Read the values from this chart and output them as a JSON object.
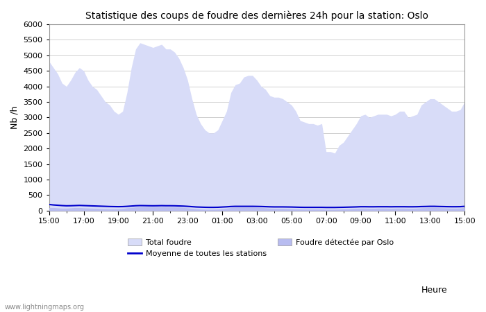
{
  "title": "Statistique des coups de foudre des dernières 24h pour la station: Oslo",
  "ylabel": "Nb /h",
  "xlabel": "Heure",
  "watermark": "www.lightningmaps.org",
  "x_ticks": [
    "15:00",
    "17:00",
    "19:00",
    "21:00",
    "23:00",
    "01:00",
    "03:00",
    "05:00",
    "07:00",
    "09:00",
    "11:00",
    "13:00",
    "15:00"
  ],
  "ylim": [
    0,
    6000
  ],
  "yticks": [
    0,
    500,
    1000,
    1500,
    2000,
    2500,
    3000,
    3500,
    4000,
    4500,
    5000,
    5500,
    6000
  ],
  "background_color": "#ffffff",
  "grid_color": "#c8c8c8",
  "fill_total_color": "#d8dcf8",
  "fill_oslo_color": "#b8bcf0",
  "line_mean_color": "#0000cc",
  "total_foudre": [
    4800,
    4600,
    4400,
    4100,
    4000,
    4200,
    4450,
    4600,
    4500,
    4200,
    4000,
    3900,
    3700,
    3500,
    3400,
    3200,
    3100,
    3200,
    3800,
    4600,
    5200,
    5400,
    5350,
    5300,
    5250,
    5300,
    5350,
    5200,
    5200,
    5100,
    4900,
    4600,
    4200,
    3600,
    3100,
    2800,
    2600,
    2500,
    2500,
    2600,
    2900,
    3200,
    3800,
    4050,
    4100,
    4300,
    4350,
    4350,
    4200,
    4000,
    3900,
    3700,
    3650,
    3650,
    3600,
    3500,
    3400,
    3200,
    2900,
    2850,
    2800,
    2800,
    2750,
    2800,
    1900,
    1900,
    1850,
    2100,
    2200,
    2400,
    2600,
    2800,
    3050,
    3100,
    3000,
    3050,
    3100,
    3100,
    3100,
    3050,
    3100,
    3200,
    3200,
    3000,
    3050,
    3100,
    3400,
    3500,
    3600,
    3600,
    3500,
    3400,
    3300,
    3200,
    3200,
    3250,
    3500
  ],
  "foudre_oslo": [
    100,
    100,
    90,
    80,
    80,
    90,
    100,
    100,
    90,
    85,
    80,
    75,
    70,
    65,
    60,
    60,
    60,
    70,
    90,
    100,
    120,
    130,
    130,
    130,
    125,
    130,
    130,
    125,
    125,
    120,
    115,
    100,
    90,
    75,
    60,
    50,
    45,
    45,
    45,
    50,
    65,
    80,
    100,
    110,
    110,
    110,
    110,
    110,
    105,
    100,
    90,
    80,
    75,
    75,
    75,
    70,
    65,
    60,
    55,
    50,
    50,
    50,
    50,
    50,
    45,
    45,
    45,
    50,
    55,
    60,
    70,
    75,
    80,
    80,
    75,
    75,
    80,
    80,
    80,
    75,
    80,
    80,
    80,
    75,
    75,
    80,
    90,
    95,
    100,
    100,
    95,
    90,
    85,
    80,
    80,
    85,
    100
  ],
  "mean_line": [
    200,
    185,
    175,
    165,
    158,
    160,
    165,
    170,
    165,
    160,
    155,
    150,
    145,
    140,
    135,
    132,
    130,
    132,
    140,
    150,
    160,
    165,
    163,
    160,
    158,
    160,
    163,
    160,
    160,
    158,
    153,
    148,
    140,
    130,
    120,
    115,
    110,
    108,
    108,
    110,
    118,
    125,
    135,
    140,
    140,
    140,
    140,
    140,
    138,
    135,
    130,
    125,
    122,
    122,
    122,
    120,
    118,
    114,
    110,
    108,
    108,
    108,
    108,
    108,
    105,
    105,
    105,
    108,
    110,
    114,
    118,
    122,
    128,
    128,
    126,
    126,
    128,
    128,
    128,
    126,
    128,
    128,
    128,
    126,
    126,
    128,
    133,
    136,
    140,
    140,
    136,
    133,
    130,
    128,
    128,
    130,
    140
  ],
  "legend_total_label": "Total foudre",
  "legend_oslo_label": "Foudre détectée par Oslo",
  "legend_mean_label": "Moyenne de toutes les stations"
}
